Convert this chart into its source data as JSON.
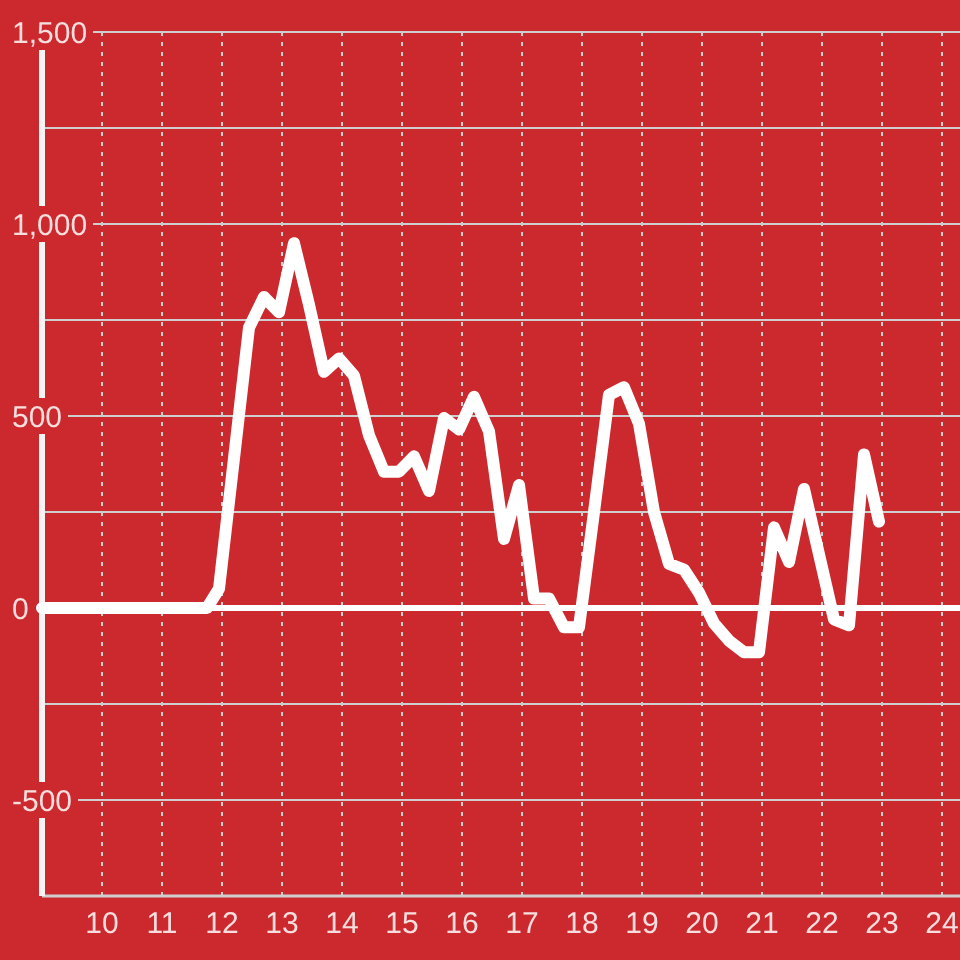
{
  "chart_data": {
    "type": "line",
    "x": [
      9,
      9.25,
      9.5,
      9.75,
      10,
      10.25,
      10.5,
      10.75,
      11,
      11.25,
      11.5,
      11.75,
      11.95,
      12.2,
      12.45,
      12.7,
      12.95,
      13.2,
      13.45,
      13.7,
      13.95,
      14.2,
      14.45,
      14.7,
      14.95,
      15.2,
      15.45,
      15.7,
      15.95,
      16.2,
      16.45,
      16.7,
      16.95,
      17.2,
      17.45,
      17.7,
      17.95,
      18.2,
      18.45,
      18.7,
      18.95,
      19.2,
      19.45,
      19.7,
      19.95,
      20.2,
      20.45,
      20.7,
      20.95,
      21.2,
      21.45,
      21.7,
      21.95,
      22.2,
      22.45,
      22.7,
      22.95
    ],
    "series": [
      {
        "color": "#ffffff",
        "values": [
          0,
          0,
          0,
          0,
          0,
          0,
          0,
          0,
          0,
          0,
          0,
          0,
          50,
          390,
          730,
          810,
          770,
          950,
          790,
          615,
          650,
          605,
          450,
          355,
          355,
          395,
          305,
          495,
          465,
          550,
          460,
          180,
          320,
          25,
          25,
          -50,
          -50,
          250,
          555,
          575,
          480,
          250,
          115,
          100,
          40,
          -40,
          -85,
          -115,
          -115,
          210,
          120,
          310,
          140,
          -30,
          -45,
          400,
          225
        ]
      }
    ],
    "xlim": [
      9,
      24.3
    ],
    "xticks": [
      10,
      11,
      12,
      13,
      14,
      15,
      16,
      17,
      18,
      19,
      20,
      21,
      22,
      23,
      24
    ],
    "ylim": [
      -750,
      1500
    ],
    "yticks": [
      -500,
      {
        "value": -250,
        "label": null
      },
      0,
      {
        "value": 250,
        "label": null
      },
      500,
      {
        "value": 750,
        "label": null
      },
      {
        "value": 1000,
        "label": "1,000"
      },
      {
        "value": 1250,
        "label": null
      },
      {
        "value": 1500,
        "label": "1,500"
      }
    ],
    "grid": true,
    "ref_lines": [
      {
        "axis": "y",
        "value": 0,
        "color": "#ffffff"
      }
    ]
  }
}
